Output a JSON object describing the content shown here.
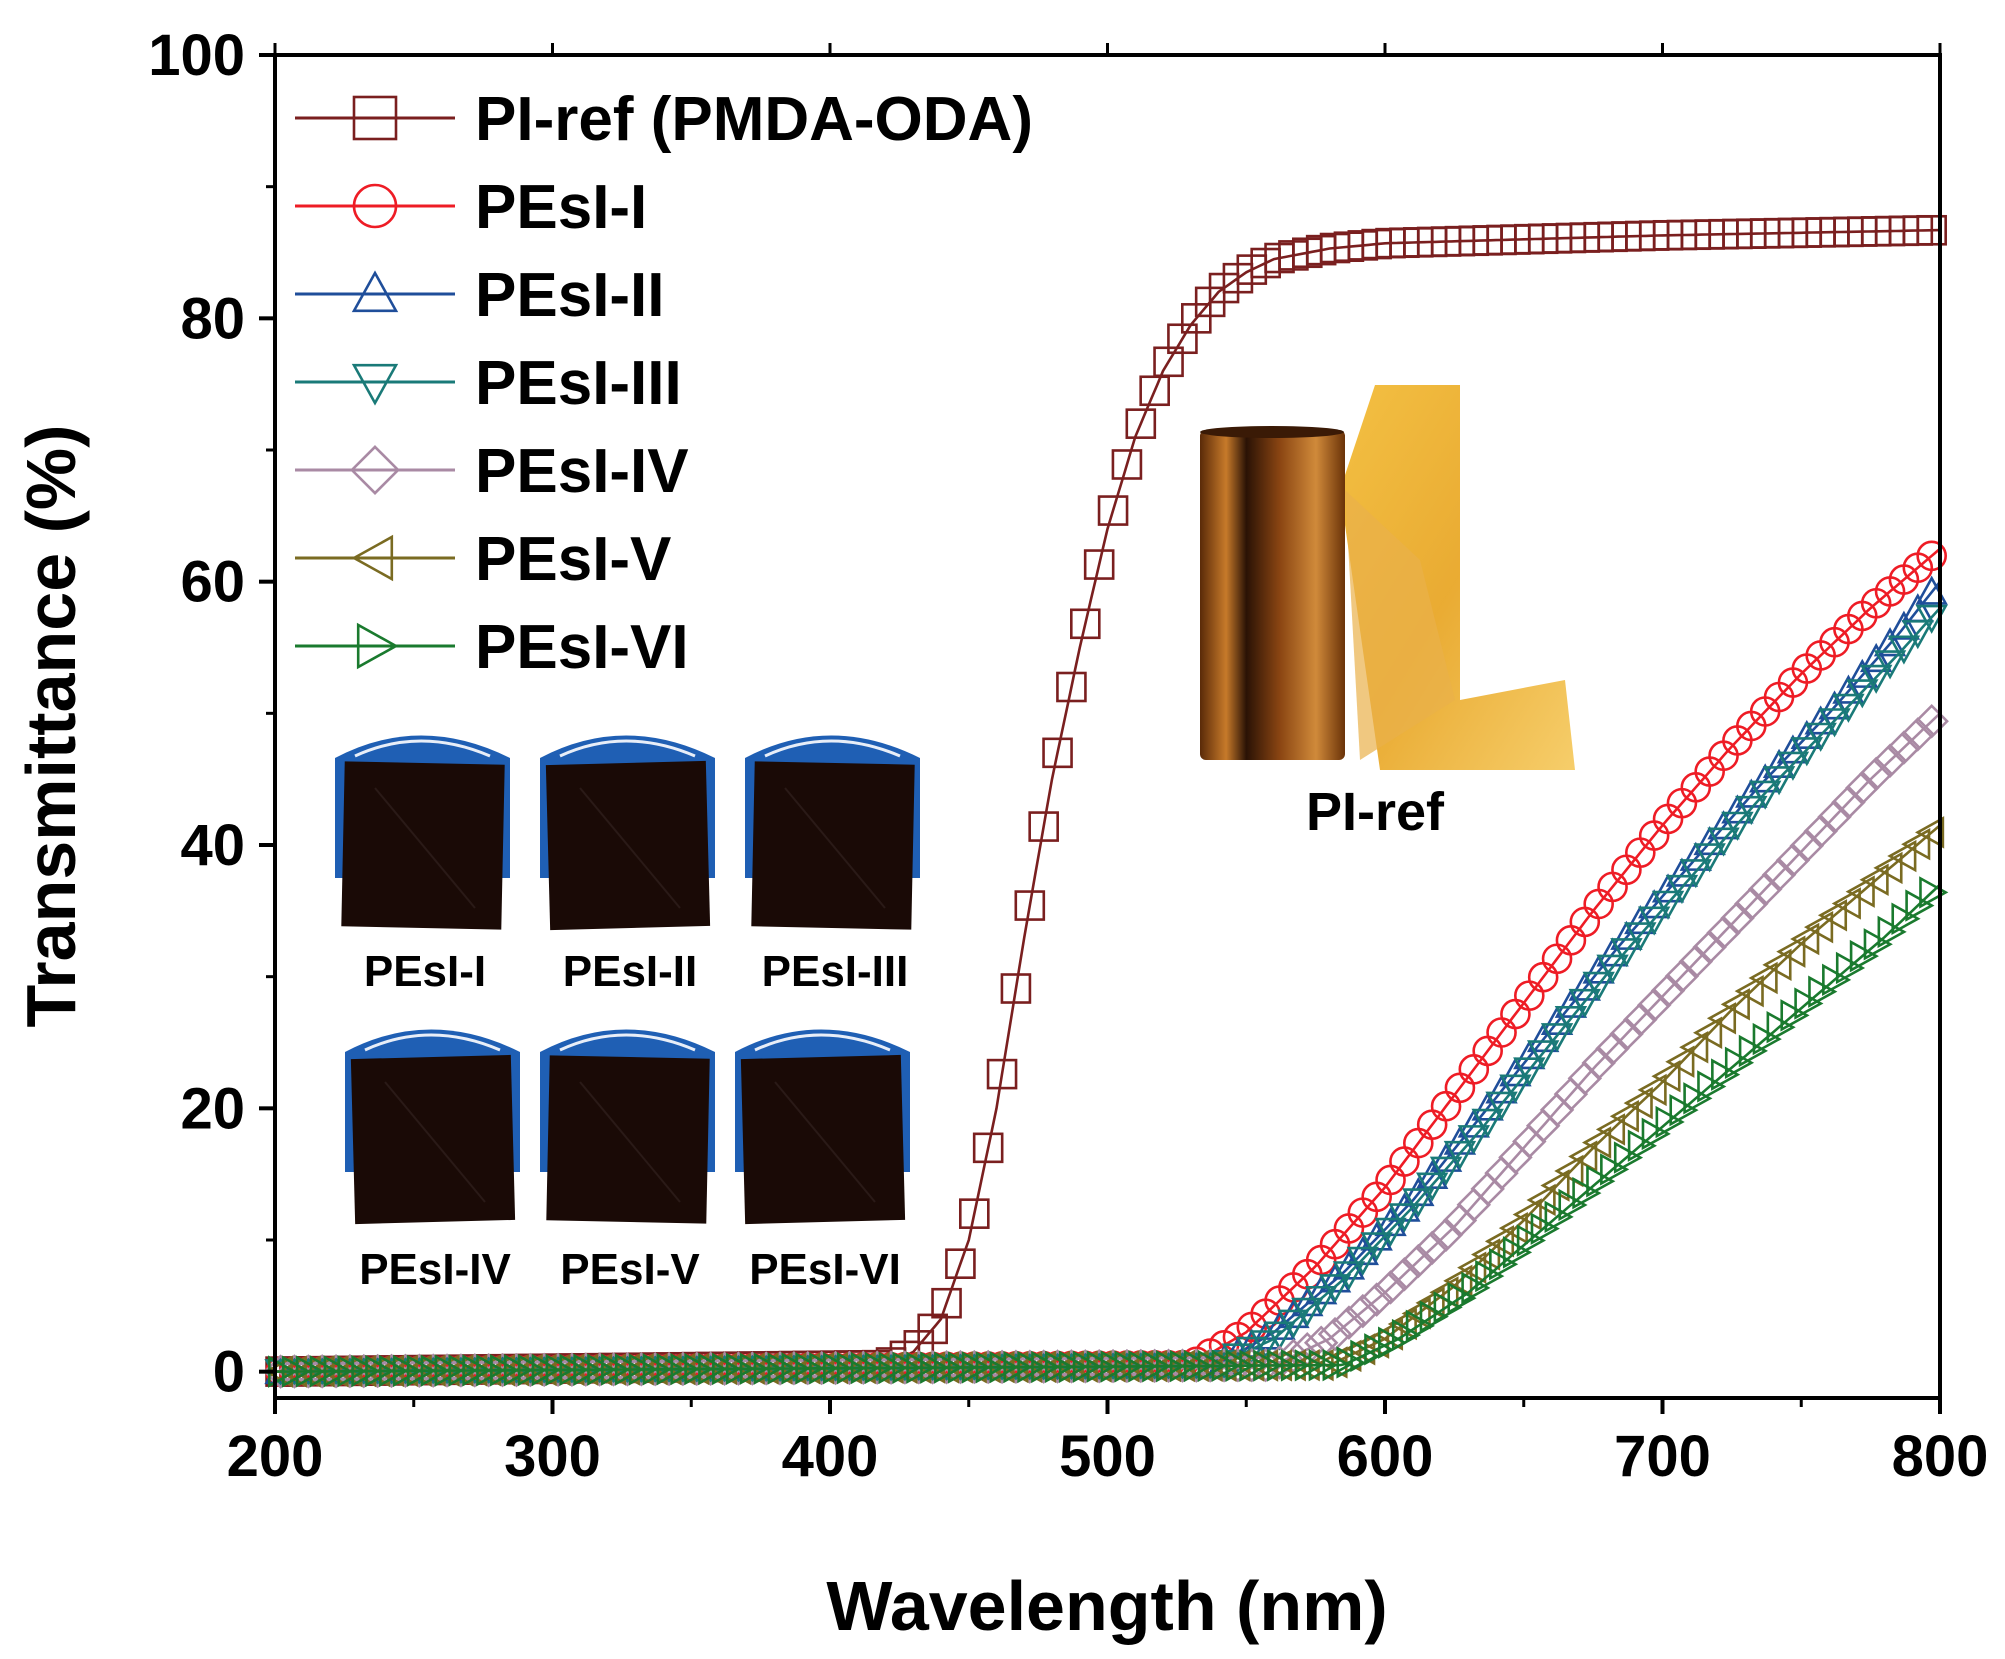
{
  "chart_data": {
    "type": "line",
    "xlabel": "Wavelength (nm)",
    "ylabel": "Transmittance (%)",
    "xlim": [
      200,
      800
    ],
    "ylim": [
      -2,
      100
    ],
    "xticks": [
      "200",
      "300",
      "400",
      "500",
      "600",
      "700",
      "800"
    ],
    "yticks": [
      "0",
      "20",
      "40",
      "60",
      "80",
      "100"
    ],
    "legend_position": "top-left",
    "series": [
      {
        "name": "PI-ref (PMDA-ODA)",
        "color": "#7a1f1f",
        "marker": "square",
        "x": [
          200,
          420,
          430,
          440,
          450,
          460,
          470,
          480,
          490,
          500,
          510,
          520,
          530,
          540,
          550,
          560,
          580,
          600,
          650,
          700,
          750,
          800
        ],
        "y": [
          0,
          0.5,
          1.5,
          4,
          10,
          20,
          33,
          45,
          55,
          64,
          71,
          76,
          79.5,
          82,
          83.5,
          84.5,
          85.3,
          85.7,
          86,
          86.3,
          86.5,
          86.7
        ]
      },
      {
        "name": "PEsI-I",
        "color": "#ee1c25",
        "marker": "circle",
        "x": [
          200,
          530,
          550,
          575,
          600,
          625,
          650,
          675,
          700,
          725,
          750,
          775,
          800
        ],
        "y": [
          0,
          0.5,
          3,
          8,
          14,
          21,
          28,
          35,
          41.5,
          47.5,
          53,
          58,
          62.5
        ]
      },
      {
        "name": "PEsI-II",
        "color": "#1f4e9a",
        "marker": "triangle-up",
        "x": [
          200,
          540,
          560,
          585,
          610,
          635,
          660,
          685,
          710,
          735,
          760,
          785,
          800
        ],
        "y": [
          0,
          0.5,
          3,
          7.5,
          13,
          19.5,
          26,
          32.5,
          38.5,
          44.5,
          50,
          56,
          60
        ]
      },
      {
        "name": "PEsI-III",
        "color": "#1a7a78",
        "marker": "triangle-down",
        "x": [
          200,
          540,
          560,
          585,
          610,
          635,
          660,
          685,
          710,
          735,
          760,
          785,
          800
        ],
        "y": [
          0,
          0.5,
          2.5,
          7,
          12.5,
          18.5,
          25,
          31.5,
          37.5,
          43.5,
          49,
          54.5,
          58
        ]
      },
      {
        "name": "PEsI-IV",
        "color": "#a98aa4",
        "marker": "diamond",
        "x": [
          200,
          560,
          580,
          600,
          625,
          650,
          675,
          700,
          725,
          750,
          775,
          800
        ],
        "y": [
          0,
          0.5,
          2.5,
          6,
          11,
          17,
          23,
          28.5,
          34,
          39.5,
          45,
          50
        ]
      },
      {
        "name": "PEsI-V",
        "color": "#7a6b22",
        "marker": "triangle-left",
        "x": [
          200,
          580,
          600,
          625,
          650,
          675,
          700,
          725,
          750,
          775,
          800
        ],
        "y": [
          0,
          0.5,
          2.5,
          6.5,
          11.5,
          17,
          22,
          27.5,
          32.5,
          37,
          41.5
        ]
      },
      {
        "name": "PEsI-VI",
        "color": "#1a7a2e",
        "marker": "triangle-right",
        "x": [
          200,
          585,
          605,
          630,
          655,
          680,
          705,
          730,
          755,
          780,
          800
        ],
        "y": [
          0,
          0.5,
          2.5,
          6,
          10.5,
          15,
          19.5,
          24,
          28.5,
          33,
          37
        ]
      }
    ]
  },
  "insets": {
    "film_labels": [
      "PEsI-I",
      "PEsI-II",
      "PEsI-III",
      "PEsI-IV",
      "PEsI-V",
      "PEsI-VI"
    ],
    "ref_label": "PI-ref"
  }
}
